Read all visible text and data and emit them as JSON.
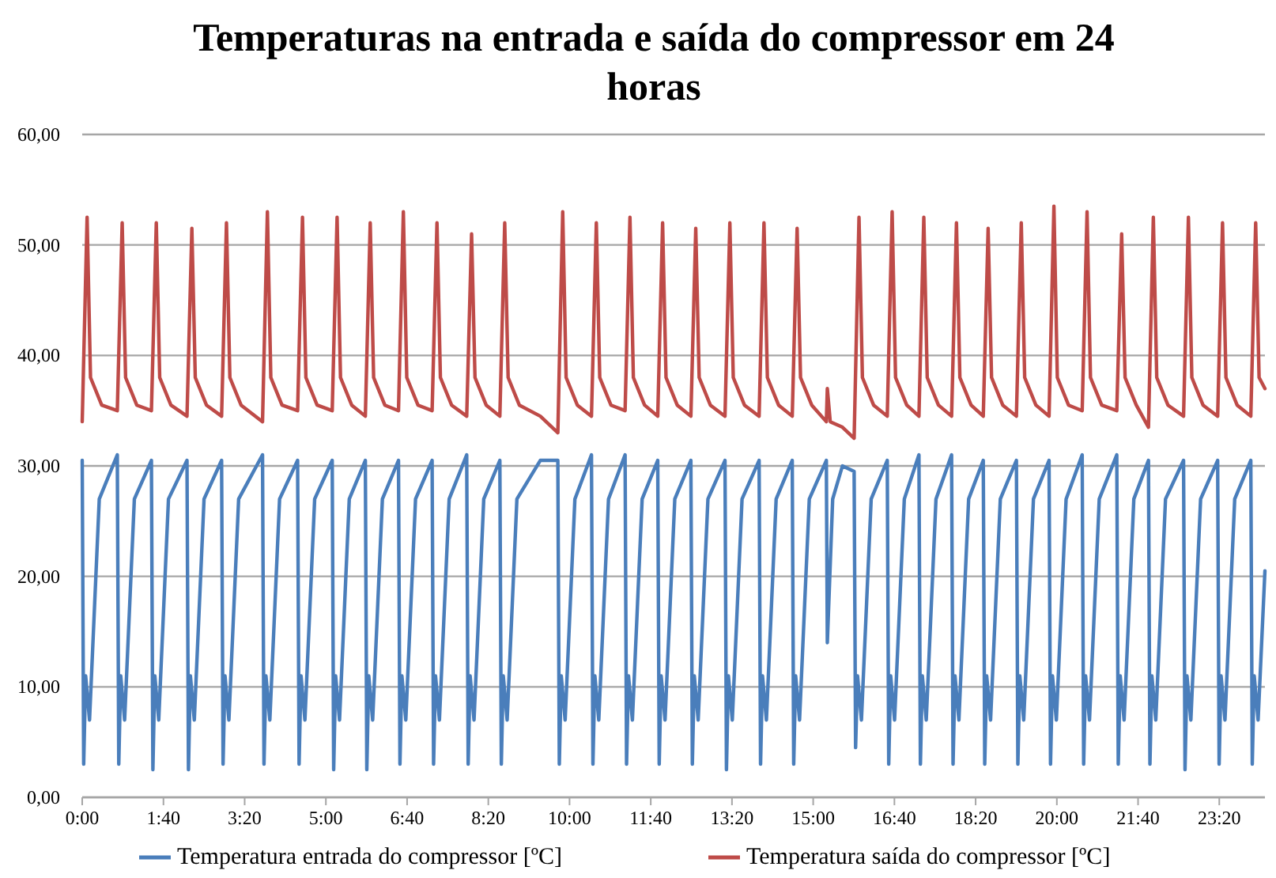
{
  "chart_data": {
    "type": "line",
    "title": "Temperaturas na entrada e saída do compressor em 24 horas",
    "xlim": [
      0,
      24.27
    ],
    "xticks": [
      {
        "value": 0,
        "label": "0:00"
      },
      {
        "value": 1.6667,
        "label": "1:40"
      },
      {
        "value": 3.3333,
        "label": "3:20"
      },
      {
        "value": 5,
        "label": "5:00"
      },
      {
        "value": 6.6667,
        "label": "6:40"
      },
      {
        "value": 8.3333,
        "label": "8:20"
      },
      {
        "value": 10,
        "label": "10:00"
      },
      {
        "value": 11.6667,
        "label": "11:40"
      },
      {
        "value": 13.3333,
        "label": "13:20"
      },
      {
        "value": 15,
        "label": "15:00"
      },
      {
        "value": 16.6667,
        "label": "16:40"
      },
      {
        "value": 18.3333,
        "label": "18:20"
      },
      {
        "value": 20,
        "label": "20:00"
      },
      {
        "value": 21.6667,
        "label": "21:40"
      },
      {
        "value": 23.3333,
        "label": "23:20"
      }
    ],
    "ylim": [
      0,
      60
    ],
    "yticks": [
      {
        "value": 0,
        "label": "0,00"
      },
      {
        "value": 10,
        "label": "10,00"
      },
      {
        "value": 20,
        "label": "20,00"
      },
      {
        "value": 30,
        "label": "30,00"
      },
      {
        "value": 40,
        "label": "40,00"
      },
      {
        "value": 50,
        "label": "50,00"
      },
      {
        "value": 60,
        "label": "60,00"
      }
    ],
    "grid": "y",
    "legend": "bottom",
    "marker": "none",
    "line_style": "solid",
    "series": [
      {
        "name": "Temperatura entrada do compressor  [ºC]",
        "color": "#4a7ebb",
        "x": [
          0,
          0.03,
          0.07,
          0.15,
          0.35,
          0.72,
          0.75,
          0.79,
          0.87,
          1.07,
          1.42,
          1.45,
          1.49,
          1.57,
          1.77,
          2.15,
          2.18,
          2.22,
          2.3,
          2.5,
          2.86,
          2.89,
          2.93,
          3.01,
          3.21,
          3.7,
          3.73,
          3.77,
          3.85,
          4.05,
          4.42,
          4.45,
          4.49,
          4.57,
          4.77,
          5.13,
          5.16,
          5.2,
          5.28,
          5.48,
          5.81,
          5.84,
          5.88,
          5.96,
          6.16,
          6.49,
          6.52,
          6.56,
          6.64,
          6.84,
          7.18,
          7.21,
          7.25,
          7.33,
          7.53,
          7.89,
          7.92,
          7.96,
          8.04,
          8.24,
          8.57,
          8.6,
          8.64,
          8.72,
          8.92,
          9.4,
          9.76,
          9.79,
          9.83,
          9.91,
          10.11,
          10.45,
          10.48,
          10.52,
          10.6,
          10.8,
          11.14,
          11.17,
          11.21,
          11.29,
          11.49,
          11.81,
          11.84,
          11.88,
          11.96,
          12.16,
          12.49,
          12.52,
          12.56,
          12.64,
          12.84,
          13.19,
          13.22,
          13.26,
          13.34,
          13.54,
          13.89,
          13.92,
          13.96,
          14.04,
          14.24,
          14.57,
          14.6,
          14.64,
          14.72,
          14.92,
          15.27,
          15.29,
          15.4,
          15.6,
          15.84,
          15.87,
          15.91,
          15.99,
          16.19,
          16.52,
          16.55,
          16.59,
          16.67,
          16.87,
          17.17,
          17.2,
          17.24,
          17.32,
          17.52,
          17.84,
          17.87,
          17.91,
          17.99,
          18.19,
          18.49,
          18.52,
          18.56,
          18.64,
          18.84,
          19.17,
          19.2,
          19.24,
          19.32,
          19.52,
          19.84,
          19.87,
          19.91,
          19.99,
          20.19,
          20.52,
          20.55,
          20.59,
          20.67,
          20.87,
          21.23,
          21.26,
          21.3,
          21.38,
          21.58,
          21.88,
          21.91,
          21.95,
          22.03,
          22.23,
          22.6,
          22.63,
          22.67,
          22.75,
          22.95,
          23.3,
          23.33,
          23.37,
          23.45,
          23.65,
          23.98,
          24.01,
          24.05,
          24.13,
          24.27
        ],
        "values": [
          30.5,
          3,
          11,
          7,
          27,
          31,
          3,
          11,
          7,
          27,
          30.5,
          2.5,
          11,
          7,
          27,
          30.5,
          2.5,
          11,
          7,
          27,
          30.5,
          3,
          11,
          7,
          27,
          31,
          3,
          11,
          7,
          27,
          30.5,
          3,
          11,
          7,
          27,
          30.5,
          2.5,
          11,
          7,
          27,
          30.5,
          2.5,
          11,
          7,
          27,
          30.5,
          3,
          11,
          7,
          27,
          30.5,
          3,
          11,
          7,
          27,
          31,
          3,
          11,
          7,
          27,
          30.5,
          3,
          11,
          7,
          27,
          30.5,
          30.5,
          3,
          11,
          7,
          27,
          31,
          3,
          11,
          7,
          27,
          31,
          3,
          11,
          7,
          27,
          30.5,
          3,
          11,
          7,
          27,
          30.5,
          3,
          11,
          7,
          27,
          30.5,
          2.5,
          11,
          7,
          27,
          30.5,
          3,
          11,
          7,
          27,
          30.5,
          3,
          11,
          7,
          27,
          30.5,
          14,
          27,
          30,
          29.5,
          4.5,
          11,
          7,
          27,
          30.5,
          3,
          11,
          7,
          27,
          31,
          3,
          11,
          7,
          27,
          31,
          3,
          11,
          7,
          27,
          30.5,
          3,
          11,
          7,
          27,
          30.5,
          3,
          11,
          7,
          27,
          30.5,
          3,
          11,
          7,
          27,
          31,
          3,
          11,
          7,
          27,
          31,
          3,
          11,
          7,
          27,
          30.5,
          3,
          11,
          7,
          27,
          30.5,
          2.5,
          11,
          7,
          27,
          30.5,
          3,
          11,
          7,
          27,
          30.5,
          3,
          11,
          7,
          20.5
        ]
      },
      {
        "name": "Temperatura saída do compressor  [ºC]",
        "color": "#be4b48",
        "x": [
          0,
          0.1,
          0.17,
          0.4,
          0.72,
          0.82,
          0.89,
          1.12,
          1.42,
          1.52,
          1.59,
          1.82,
          2.15,
          2.25,
          2.32,
          2.55,
          2.86,
          2.96,
          3.03,
          3.26,
          3.7,
          3.8,
          3.87,
          4.1,
          4.42,
          4.52,
          4.59,
          4.82,
          5.13,
          5.23,
          5.3,
          5.53,
          5.81,
          5.91,
          5.98,
          6.21,
          6.49,
          6.59,
          6.66,
          6.89,
          7.18,
          7.28,
          7.35,
          7.58,
          7.89,
          7.99,
          8.06,
          8.29,
          8.57,
          8.67,
          8.74,
          8.97,
          9.4,
          9.76,
          9.86,
          9.93,
          10.16,
          10.45,
          10.55,
          10.62,
          10.85,
          11.14,
          11.24,
          11.31,
          11.54,
          11.81,
          11.91,
          11.98,
          12.21,
          12.49,
          12.59,
          12.66,
          12.89,
          13.19,
          13.29,
          13.36,
          13.59,
          13.89,
          13.99,
          14.06,
          14.29,
          14.57,
          14.67,
          14.74,
          14.97,
          15.27,
          15.29,
          15.35,
          15.6,
          15.84,
          15.94,
          16.01,
          16.24,
          16.52,
          16.62,
          16.69,
          16.92,
          17.17,
          17.27,
          17.34,
          17.57,
          17.84,
          17.94,
          18.01,
          18.24,
          18.49,
          18.59,
          18.66,
          18.89,
          19.17,
          19.27,
          19.34,
          19.57,
          19.84,
          19.94,
          20.01,
          20.24,
          20.52,
          20.62,
          20.69,
          20.92,
          21.23,
          21.33,
          21.4,
          21.63,
          21.88,
          21.98,
          22.05,
          22.28,
          22.6,
          22.7,
          22.77,
          23,
          23.3,
          23.4,
          23.47,
          23.7,
          23.98,
          24.08,
          24.15,
          24.27
        ],
        "values": [
          34,
          52.5,
          38,
          35.5,
          35,
          52,
          38,
          35.5,
          35,
          52,
          38,
          35.5,
          34.5,
          51.5,
          38,
          35.5,
          34.5,
          52,
          38,
          35.5,
          34,
          53,
          38,
          35.5,
          35,
          52.5,
          38,
          35.5,
          35,
          52.5,
          38,
          35.5,
          34.5,
          52,
          38,
          35.5,
          35,
          53,
          38,
          35.5,
          35,
          52,
          38,
          35.5,
          34.5,
          51,
          38,
          35.5,
          34.5,
          52,
          38,
          35.5,
          34.5,
          33,
          53,
          38,
          35.5,
          34.5,
          52,
          38,
          35.5,
          35,
          52.5,
          38,
          35.5,
          34.5,
          52,
          38,
          35.5,
          34.5,
          51.5,
          38,
          35.5,
          34.5,
          52,
          38,
          35.5,
          34.5,
          52,
          38,
          35.5,
          34.5,
          51.5,
          38,
          35.5,
          34,
          37,
          34,
          33.5,
          32.5,
          52.5,
          38,
          35.5,
          34.5,
          53,
          38,
          35.5,
          34.5,
          52.5,
          38,
          35.5,
          34.5,
          52,
          38,
          35.5,
          34.5,
          51.5,
          38,
          35.5,
          34.5,
          52,
          38,
          35.5,
          34.5,
          53.5,
          38,
          35.5,
          35,
          53,
          38,
          35.5,
          35,
          51,
          38,
          35.5,
          33.5,
          52.5,
          38,
          35.5,
          34.5,
          52.5,
          38,
          35.5,
          34.5,
          52,
          38,
          35.5,
          34.5,
          52,
          38,
          37
        ]
      }
    ]
  }
}
